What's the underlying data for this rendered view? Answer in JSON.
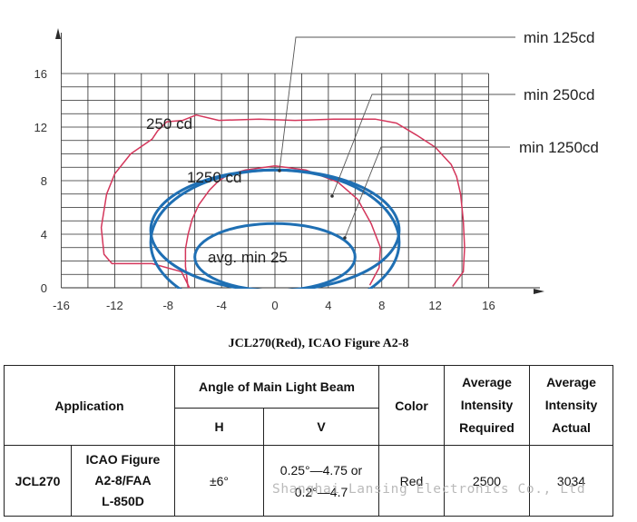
{
  "chart_data": {
    "type": "isocandela-diagram",
    "x_ticks": [
      "-16",
      "-12",
      "-8",
      "-4",
      "0",
      "4",
      "8",
      "12",
      "16"
    ],
    "y_ticks": [
      "0",
      "4",
      "8",
      "12",
      "16"
    ],
    "xlim": [
      -16,
      16
    ],
    "ylim": [
      0,
      16
    ],
    "grid": true,
    "curve_labels": [
      "250 cd",
      "1250 cd",
      "avg. min 25"
    ],
    "callouts": [
      "min 125cd",
      "min 250cd",
      "min 1250cd"
    ],
    "contours": {
      "actual_250cd": {
        "color": "#d4365b",
        "points": [
          [
            -6.4,
            0
          ],
          [
            -7,
            1.2
          ],
          [
            -9.2,
            1.8
          ],
          [
            -12.2,
            1.8
          ],
          [
            -12.8,
            2.5
          ],
          [
            -13,
            4.5
          ],
          [
            -12.6,
            7
          ],
          [
            -12,
            8.5
          ],
          [
            -10.8,
            10
          ],
          [
            -9.2,
            11.1
          ],
          [
            -8.8,
            11.7
          ],
          [
            -8.1,
            12.4
          ],
          [
            -6.9,
            12.5
          ],
          [
            -5.9,
            12.9
          ],
          [
            -4.2,
            12.5
          ],
          [
            -1.2,
            12.6
          ],
          [
            1.5,
            12.5
          ],
          [
            4.4,
            12.6
          ],
          [
            7.5,
            12.6
          ],
          [
            9.1,
            12.3
          ],
          [
            10.6,
            11.4
          ],
          [
            12,
            10.5
          ],
          [
            13.2,
            9.2
          ],
          [
            13.6,
            8.3
          ],
          [
            13.9,
            7
          ],
          [
            14.1,
            5
          ],
          [
            14.2,
            3
          ],
          [
            14.1,
            1.2
          ],
          [
            13.3,
            0.1
          ]
        ]
      },
      "actual_1250cd": {
        "color": "#d4365b",
        "points": [
          [
            -6.5,
            0
          ],
          [
            -6.7,
            1.6
          ],
          [
            -6.7,
            2.9
          ],
          [
            -6.5,
            4
          ],
          [
            -6.2,
            5.1
          ],
          [
            -5.7,
            6.2
          ],
          [
            -4.9,
            7.3
          ],
          [
            -4.3,
            7.9
          ],
          [
            -3.6,
            8.4
          ],
          [
            -2.2,
            8.8
          ],
          [
            0,
            9.1
          ],
          [
            2.3,
            8.8
          ],
          [
            4.7,
            7.9
          ],
          [
            6.2,
            6.6
          ],
          [
            7.2,
            4.8
          ],
          [
            7.9,
            3
          ],
          [
            7.8,
            1.5
          ],
          [
            7.1,
            0.2
          ]
        ]
      },
      "avg_min_25": {
        "color": "#1f6fb3",
        "cx": 0,
        "cy": 2.3,
        "rx": 6.0,
        "ry": 2.5
      },
      "min_250cd": {
        "color": "#1f6fb3",
        "cx": 0,
        "cy": 3.4,
        "rx": 9.3,
        "ry": 5.4
      },
      "min_125cd": {
        "color": "#1f6fb3",
        "cx": 0,
        "cy": 4.3,
        "rx": 9.3,
        "ry": 4.5
      }
    }
  },
  "caption": "JCL270(Red), ICAO Figure A2-8",
  "table": {
    "header": {
      "application": "Application",
      "angle": "Angle of Main Light Beam",
      "h": "H",
      "v": "V",
      "color": "Color",
      "avg_required": [
        "Average",
        "Intensity",
        "Required"
      ],
      "avg_actual": [
        "Average",
        "Intensity",
        "Actual"
      ]
    },
    "row": {
      "model": "JCL270",
      "standard": [
        "ICAO Figure",
        "A2-8/FAA",
        "L-850D"
      ],
      "h": "±6°",
      "v": [
        "0.25°—4.75 or",
        "0.2°—4.7"
      ],
      "color": "Red",
      "required": "2500",
      "actual": "3034"
    }
  },
  "watermark": "Shanghai Lansing Electronics Co., Ltd"
}
